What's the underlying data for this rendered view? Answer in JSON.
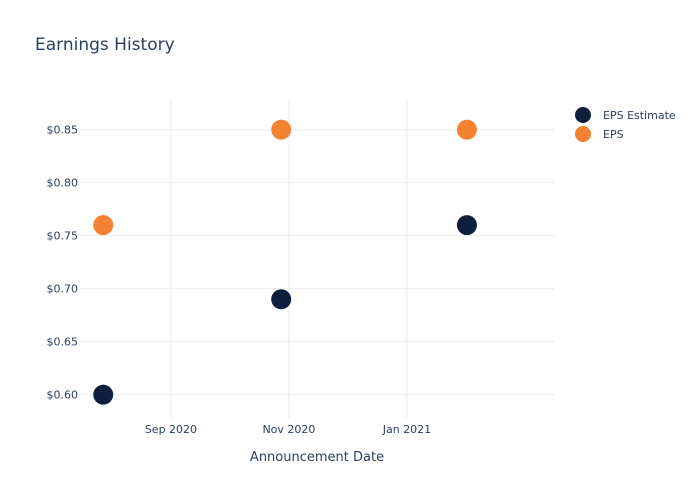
{
  "chart_data": {
    "type": "scatter",
    "title": "Earnings History",
    "xlabel": "Announcement Date",
    "ylabel": "",
    "x_axis_type": "date",
    "xlim": [
      "2020-07-16",
      "2021-03-18"
    ],
    "ylim": [
      0.578,
      0.878
    ],
    "x_ticks": [
      {
        "date": "2020-09-01",
        "label": "Sep 2020"
      },
      {
        "date": "2020-11-01",
        "label": "Nov 2020"
      },
      {
        "date": "2021-01-01",
        "label": "Jan 2021"
      }
    ],
    "y_ticks": [
      {
        "value": 0.6,
        "label": "$0.60"
      },
      {
        "value": 0.65,
        "label": "$0.65"
      },
      {
        "value": 0.7,
        "label": "$0.70"
      },
      {
        "value": 0.75,
        "label": "$0.75"
      },
      {
        "value": 0.8,
        "label": "$0.80"
      },
      {
        "value": 0.85,
        "label": "$0.85"
      }
    ],
    "grid": true,
    "legend_position": "top-right",
    "series": [
      {
        "name": "EPS Estimate",
        "color": "#0d1f3d",
        "points": [
          {
            "x": "2020-07-28",
            "y": 0.6
          },
          {
            "x": "2020-10-28",
            "y": 0.69
          },
          {
            "x": "2021-02-01",
            "y": 0.76
          }
        ]
      },
      {
        "name": "EPS",
        "color": "#f58233",
        "points": [
          {
            "x": "2020-07-28",
            "y": 0.76
          },
          {
            "x": "2020-10-28",
            "y": 0.85
          },
          {
            "x": "2021-02-01",
            "y": 0.85
          }
        ]
      }
    ]
  }
}
